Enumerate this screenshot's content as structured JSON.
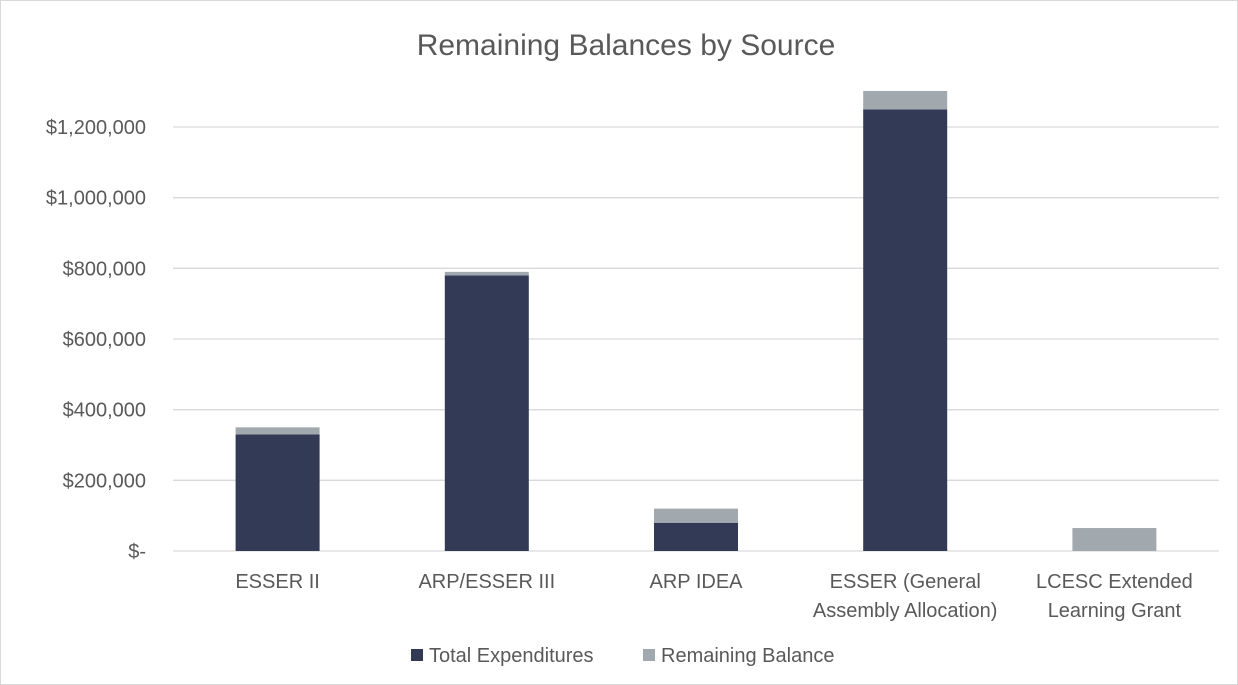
{
  "chart_data": {
    "type": "bar",
    "stacked": true,
    "title": "Remaining Balances by Source",
    "xlabel": "",
    "ylabel": "",
    "categories": [
      [
        "ESSER II"
      ],
      [
        "ARP/ESSER III"
      ],
      [
        "ARP IDEA"
      ],
      [
        "ESSER (General",
        "Assembly Allocation)"
      ],
      [
        "LCESC Extended",
        "Learning Grant"
      ]
    ],
    "series": [
      {
        "name": "Total Expenditures",
        "color": "#333a56",
        "values": [
          330000,
          780000,
          80000,
          1250000,
          0
        ]
      },
      {
        "name": "Remaining Balance",
        "color": "#a2a9ae",
        "values": [
          20000,
          10000,
          40000,
          52000,
          65000
        ]
      }
    ],
    "ylim": [
      0,
      1300000
    ],
    "yticks": [
      0,
      200000,
      400000,
      600000,
      800000,
      1000000,
      1200000
    ],
    "ytick_labels": [
      "$-",
      "$200,000",
      "$400,000",
      "$600,000",
      "$800,000",
      "$1,000,000",
      "$1,200,000"
    ],
    "grid": true,
    "legend_position": "bottom"
  }
}
